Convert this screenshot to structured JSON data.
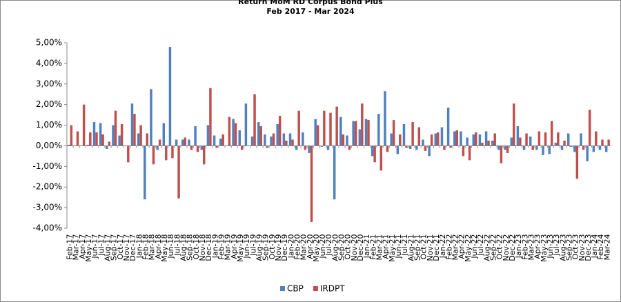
{
  "chart_data": {
    "type": "bar",
    "title": "Return MoM RD Corpus Bond Plus",
    "subtitle": "Feb 2017 - Mar 2024",
    "categories": [
      "Feb-17",
      "Mar-17",
      "Apr-17",
      "May-17",
      "Jun-17",
      "Jul-17",
      "Aug-17",
      "Sep-17",
      "Oct-17",
      "Nov-17",
      "Dec-17",
      "Jan-18",
      "Feb-18",
      "Mar-18",
      "Apr-18",
      "May-18",
      "Jun-18",
      "Jul-18",
      "Aug-18",
      "Sep-18",
      "Oct-18",
      "Nov-18",
      "Dec-18",
      "Jan-19",
      "Feb-19",
      "Mar-19",
      "Apr-19",
      "May-19",
      "Jun-19",
      "Jul-19",
      "Aug-19",
      "Sep-19",
      "Oct-19",
      "Nov-19",
      "Dec-19",
      "Jan-20",
      "Feb-20",
      "Mar-20",
      "Apr-20",
      "May-20",
      "Jun-20",
      "Jul-20",
      "Aug-20",
      "Sep-20",
      "Oct-20",
      "Nov-20",
      "Dec-20",
      "Jan-21",
      "Feb-21",
      "Mar-21",
      "Apr-21",
      "May-21",
      "Jun-21",
      "Jul-21",
      "Aug-21",
      "Sep-21",
      "Oct-21",
      "Nov-21",
      "Dec-21",
      "Jan-22",
      "Feb-22",
      "Mar-22",
      "Apr-22",
      "May-22",
      "Jun-22",
      "Jul-22",
      "Aug-22",
      "Sep-22",
      "Oct-22",
      "Nov-22",
      "Dec-22",
      "Jan-23",
      "Feb-23",
      "Mar-23",
      "Apr-23",
      "May-23",
      "Jun-23",
      "Jul-23",
      "Aug-23",
      "Sep-23",
      "Oct-23",
      "Nov-23",
      "Dec-23",
      "Jan-24",
      "Feb-24",
      "Mar-24"
    ],
    "series": [
      {
        "name": "CBP",
        "color": "#4f81bd",
        "values": [
          0.05,
          0,
          0,
          0.05,
          1.15,
          1.1,
          -0.15,
          1.0,
          0.5,
          0,
          2.05,
          0.6,
          -2.6,
          2.75,
          -0.2,
          1.1,
          4.8,
          0.3,
          0.3,
          0.3,
          0.95,
          -0.2,
          1.0,
          0.5,
          0.35,
          0,
          1.3,
          0.75,
          2.05,
          0.45,
          1.15,
          0.55,
          0.45,
          1.05,
          0.6,
          0.6,
          -0.2,
          0.65,
          -0.35,
          1.3,
          -0.05,
          -0.2,
          -2.6,
          1.4,
          0.5,
          1.2,
          0.8,
          1.3,
          -0.5,
          1.55,
          2.65,
          0.6,
          -0.4,
          1.05,
          -0.15,
          -0.2,
          0.3,
          -0.5,
          0.6,
          0.9,
          1.85,
          0.7,
          0.7,
          0.4,
          0.55,
          0.55,
          0.7,
          0.25,
          -0.2,
          -0.2,
          0.4,
          0.95,
          -0.2,
          0.45,
          -0.2,
          -0.45,
          -0.4,
          0.15,
          -0.2,
          0.6,
          -0.3,
          0.6,
          -0.75,
          -0.3,
          -0.2,
          -0.3
        ]
      },
      {
        "name": "IRDPT",
        "color": "#c0504d",
        "values": [
          1.0,
          0.7,
          2.0,
          0.65,
          0.65,
          0.55,
          0.2,
          1.7,
          1.05,
          -0.8,
          1.55,
          1.0,
          0.6,
          -0.9,
          0.3,
          -0.7,
          -0.6,
          -2.55,
          0.4,
          -0.2,
          -0.3,
          -0.9,
          2.8,
          -0.1,
          0.55,
          1.4,
          1.1,
          -0.2,
          0,
          2.5,
          0.95,
          -0.1,
          0.6,
          1.45,
          0.25,
          0.3,
          1.7,
          -0.2,
          -3.7,
          1.0,
          1.7,
          1.6,
          1.9,
          0.55,
          -0.2,
          1.2,
          2.05,
          1.25,
          -0.8,
          -1.2,
          -0.3,
          1.25,
          0.55,
          -0.1,
          1.15,
          0.9,
          -0.25,
          0.55,
          0.65,
          -0.2,
          -0.1,
          0.75,
          -0.5,
          -0.7,
          0.65,
          0.15,
          0.25,
          0.6,
          -0.85,
          -0.35,
          2.05,
          0.4,
          0.6,
          -0.2,
          0.7,
          0.65,
          1.2,
          0.65,
          0.25,
          -0.05,
          -1.6,
          -0.2,
          1.75,
          0.7,
          0.3,
          0.3
        ]
      }
    ],
    "ylim": [
      -4,
      5
    ],
    "yticks": [
      {
        "value": -4,
        "label": "-4,00%"
      },
      {
        "value": -3,
        "label": "-3,00%"
      },
      {
        "value": -2,
        "label": "-2,00%"
      },
      {
        "value": -1,
        "label": "-1,00%"
      },
      {
        "value": 0,
        "label": "0,00%"
      },
      {
        "value": 1,
        "label": "1,00%"
      },
      {
        "value": 2,
        "label": "2,00%"
      },
      {
        "value": 3,
        "label": "3,00%"
      },
      {
        "value": 4,
        "label": "4,00%"
      },
      {
        "value": 5,
        "label": "5,00%"
      }
    ],
    "grid": false,
    "legend": "bottom"
  }
}
